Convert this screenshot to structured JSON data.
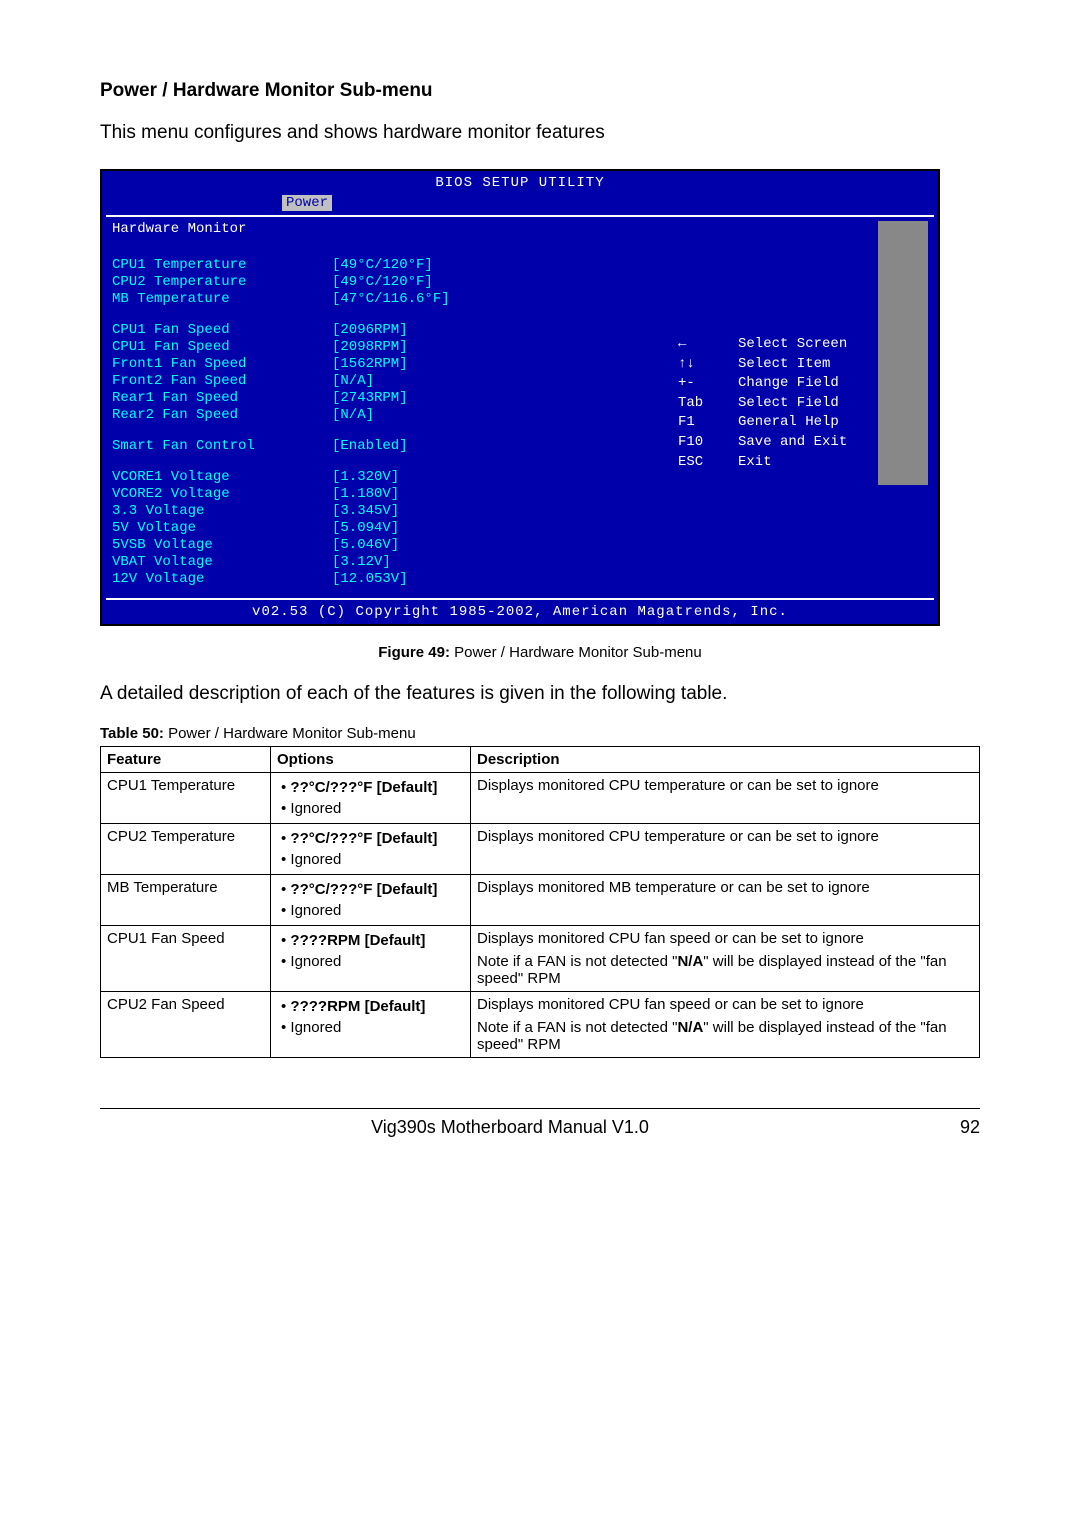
{
  "section_title": "Power / Hardware Monitor Sub-menu",
  "intro": "This menu configures and shows hardware monitor features",
  "bios": {
    "title": "BIOS SETUP UTILITY",
    "tab": "Power",
    "header": "Hardware Monitor",
    "rows_a": [
      {
        "label": "CPU1 Temperature",
        "value": "[49°C/120°F]"
      },
      {
        "label": "CPU2 Temperature",
        "value": "[49°C/120°F]"
      },
      {
        "label": "MB Temperature",
        "value": "[47°C/116.6°F]"
      }
    ],
    "rows_b": [
      {
        "label": "CPU1 Fan Speed",
        "value": "[2096RPM]"
      },
      {
        "label": "CPU1 Fan Speed",
        "value": "[2098RPM]"
      },
      {
        "label": "Front1 Fan Speed",
        "value": "[1562RPM]"
      },
      {
        "label": "Front2 Fan Speed",
        "value": "[N/A]"
      },
      {
        "label": "Rear1 Fan Speed",
        "value": "[2743RPM]"
      },
      {
        "label": "Rear2 Fan Speed",
        "value": "[N/A]"
      }
    ],
    "rows_c": [
      {
        "label": "Smart Fan Control",
        "value": "[Enabled]"
      }
    ],
    "rows_d": [
      {
        "label": "VCORE1 Voltage",
        "value": "[1.320V]"
      },
      {
        "label": "VCORE2 Voltage",
        "value": "[1.180V]"
      },
      {
        "label": "3.3 Voltage",
        "value": "[3.345V]"
      },
      {
        "label": "5V Voltage",
        "value": "[5.094V]"
      },
      {
        "label": "5VSB Voltage",
        "value": "[5.046V]"
      },
      {
        "label": "VBAT Voltage",
        "value": "[3.12V]"
      },
      {
        "label": "12V Voltage",
        "value": "[12.053V]"
      }
    ],
    "nav": [
      {
        "key": "←",
        "text": "Select Screen"
      },
      {
        "key": "↑↓",
        "text": "Select Item"
      },
      {
        "key": "+-",
        "text": "Change Field"
      },
      {
        "key": "Tab",
        "text": "Select Field"
      },
      {
        "key": "F1",
        "text": "General Help"
      },
      {
        "key": "F10",
        "text": "Save and Exit"
      },
      {
        "key": "ESC",
        "text": "Exit"
      }
    ],
    "footer": "v02.53 (C) Copyright 1985-2002, American Magatrends, Inc."
  },
  "fig_caption": {
    "label": "Figure 49:",
    "text": " Power / Hardware Monitor Sub-menu"
  },
  "desc": "A detailed description of each of the features is given in the following table.",
  "tbl_caption": {
    "label": "Table 50:",
    "text": " Power / Hardware Monitor Sub-menu"
  },
  "table": {
    "headers": [
      "Feature",
      "Options",
      "Description"
    ],
    "rows": [
      {
        "feature": "CPU1 Temperature",
        "opts": [
          "??°C/???°F [Default]",
          "Ignored"
        ],
        "bold": [
          true,
          false
        ],
        "desc": "Displays monitored CPU temperature or can be set to ignore"
      },
      {
        "feature": "CPU2 Temperature",
        "opts": [
          "??°C/???°F [Default]",
          "Ignored"
        ],
        "bold": [
          true,
          false
        ],
        "desc": "Displays monitored CPU temperature or can be set to ignore"
      },
      {
        "feature": "MB Temperature",
        "opts": [
          "??°C/???°F [Default]",
          "Ignored"
        ],
        "bold": [
          true,
          false
        ],
        "desc": "Displays monitored MB temperature or can be set to ignore"
      },
      {
        "feature": "CPU1 Fan Speed",
        "opts": [
          "????RPM [Default]",
          "Ignored"
        ],
        "bold": [
          true,
          false
        ],
        "desc": "Displays monitored CPU fan speed or can be set to ignore",
        "desc2": "Note if a FAN is not detected \"N/A\" will be displayed instead of the \"fan speed\" RPM"
      },
      {
        "feature": "CPU2 Fan Speed",
        "opts": [
          "????RPM [Default]",
          "Ignored"
        ],
        "bold": [
          true,
          false
        ],
        "desc": "Displays monitored CPU fan speed or can be set to ignore",
        "desc2": "Note if a FAN is not detected \"N/A\" will be displayed instead of the \"fan speed\" RPM"
      }
    ]
  },
  "footer": {
    "title": "Vig390s Motherboard Manual V1.0",
    "page": "92"
  }
}
